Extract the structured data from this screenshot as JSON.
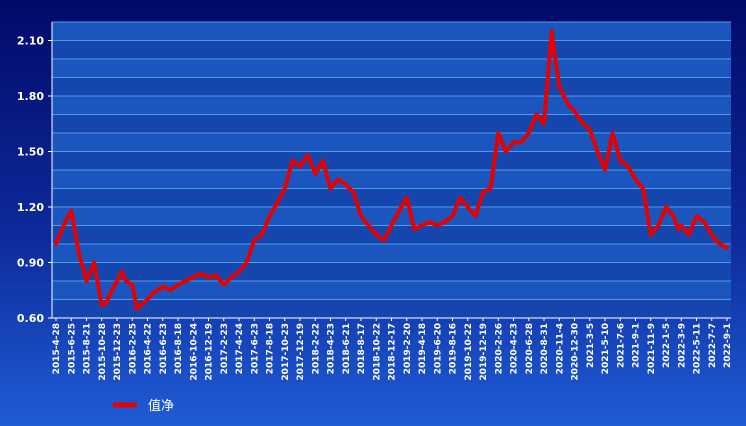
{
  "colors": {
    "series": "#e60000",
    "plot_stripe_a": "#1b56bf",
    "plot_stripe_b": "#1446ad",
    "grid": "#4f9ae6",
    "text": "#ffffff"
  },
  "chart_data": {
    "type": "line",
    "title": "",
    "xlabel": "",
    "ylabel": "",
    "ylim": [
      0.6,
      2.2
    ],
    "yticks": [
      "0.60",
      "0.90",
      "1.20",
      "1.50",
      "1.80",
      "2.10"
    ],
    "xticks": [
      "2015-4-28",
      "2015-6-25",
      "2015-8-21",
      "2015-10-28",
      "2015-12-23",
      "2016-2-25",
      "2016-4-22",
      "2016-6-23",
      "2016-8-18",
      "2016-10-24",
      "2016-12-19",
      "2017-2-23",
      "2017-4-24",
      "2017-6-23",
      "2017-8-18",
      "2017-10-23",
      "2017-12-19",
      "2018-2-22",
      "2018-4-23",
      "2018-6-21",
      "2018-8-17",
      "2018-10-22",
      "2018-12-17",
      "2019-2-20",
      "2019-4-18",
      "2019-6-20",
      "2019-8-16",
      "2019-10-22",
      "2019-12-19",
      "2020-2-26",
      "2020-4-23",
      "2020-6-28",
      "2020-8-31",
      "2020-11-4",
      "2020-12-30",
      "2021-3-5",
      "2021-5-10",
      "2021-7-6",
      "2021-9-1",
      "2021-11-9",
      "2022-1-5",
      "2022-3-9",
      "2022-5-11",
      "2022-7-7",
      "2022-9-1"
    ],
    "grid": true,
    "legend_position": "bottom-left",
    "series": [
      {
        "name": "值净",
        "x": [
          0,
          0.5,
          1,
          1.5,
          2,
          2.5,
          3,
          3.3,
          3.6,
          4,
          4.3,
          4.6,
          5,
          5.3,
          6,
          6.3,
          7,
          7.5,
          8,
          8.5,
          9,
          9.5,
          10,
          10.5,
          11,
          11.5,
          12,
          12.5,
          13,
          13.5,
          14,
          14.5,
          15,
          15.5,
          16,
          16.5,
          17,
          17.5,
          18,
          18.5,
          19,
          19.5,
          20,
          20.5,
          21,
          21.5,
          22,
          22.5,
          23,
          23.5,
          24,
          24.5,
          25,
          25.5,
          26,
          26.5,
          27,
          27.5,
          28,
          28.5,
          29,
          29.5,
          30,
          30.5,
          31,
          31.5,
          32,
          32.5,
          33,
          33.3,
          33.6,
          34,
          34.3,
          34.6,
          35,
          35.5,
          36,
          36.5,
          37,
          37.5,
          38,
          38.5,
          39,
          39.5,
          40,
          40.5,
          40.8,
          41,
          41.5,
          42,
          42.5,
          43,
          43.5,
          44
        ],
        "values": [
          1.0,
          1.1,
          1.18,
          0.95,
          0.8,
          0.9,
          0.67,
          0.68,
          0.74,
          0.8,
          0.85,
          0.8,
          0.78,
          0.65,
          0.7,
          0.73,
          0.77,
          0.75,
          0.78,
          0.8,
          0.82,
          0.84,
          0.82,
          0.83,
          0.78,
          0.82,
          0.85,
          0.9,
          1.02,
          1.05,
          1.15,
          1.22,
          1.3,
          1.45,
          1.42,
          1.48,
          1.38,
          1.45,
          1.3,
          1.35,
          1.32,
          1.28,
          1.15,
          1.1,
          1.05,
          1.02,
          1.1,
          1.18,
          1.25,
          1.08,
          1.1,
          1.12,
          1.1,
          1.12,
          1.15,
          1.25,
          1.2,
          1.15,
          1.28,
          1.3,
          1.6,
          1.5,
          1.55,
          1.55,
          1.6,
          1.7,
          1.65,
          2.15,
          1.85,
          1.8,
          1.75,
          1.72,
          1.68,
          1.65,
          1.62,
          1.5,
          1.4,
          1.6,
          1.45,
          1.42,
          1.35,
          1.3,
          1.05,
          1.1,
          1.2,
          1.15,
          1.08,
          1.1,
          1.05,
          1.15,
          1.12,
          1.05,
          1.0,
          0.98
        ]
      }
    ]
  }
}
